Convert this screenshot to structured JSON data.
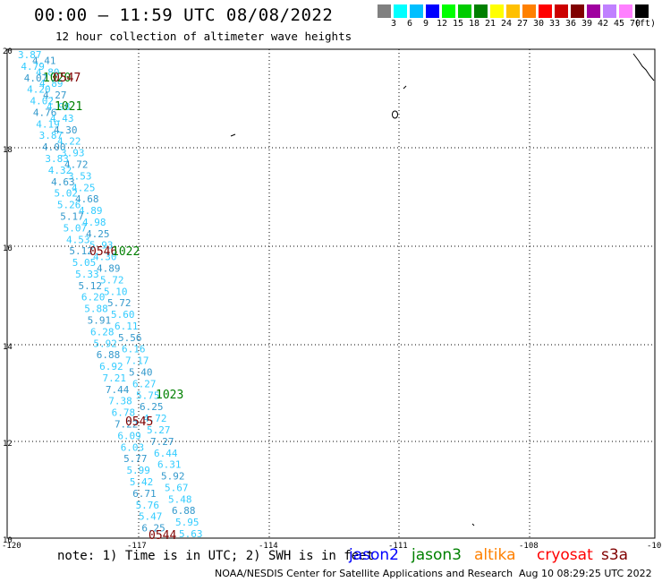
{
  "header": {
    "title": "00:00 – 11:59 UTC 08/08/2022",
    "subtitle": "12 hour collection of altimeter wave heights"
  },
  "color_scale": {
    "colors": [
      "#808080",
      "#00ffff",
      "#00bfff",
      "#0000ff",
      "#00ff00",
      "#00cc00",
      "#008000",
      "#ffff00",
      "#ffc000",
      "#ff8000",
      "#ff0000",
      "#cc0000",
      "#800000",
      "#a000a0",
      "#c080ff",
      "#ff80ff",
      "#000000"
    ],
    "labels": [
      "3",
      "6",
      "9",
      "12",
      "15",
      "18",
      "21",
      "24",
      "27",
      "30",
      "33",
      "36",
      "39",
      "42",
      "45",
      "70"
    ],
    "unit": "(ft)"
  },
  "axes": {
    "x_ticks": [
      "-120",
      "-117",
      "-114",
      "-111",
      "-108",
      "-10"
    ],
    "y_ticks": [
      "20",
      "18",
      "16",
      "14",
      "12",
      "10"
    ]
  },
  "labels_color_light": "#33ccff",
  "labels_color_dark": "#3399cc",
  "track_left": [
    "3.87",
    "4.41",
    "4.79",
    "4.80",
    "4.07",
    "4.89",
    "4.20",
    "4.27",
    "4.02",
    "4.98",
    "4.76",
    "4.43",
    "4.19",
    "4.30",
    "3.87",
    "4.22",
    "4.00",
    "3.93",
    "3.83",
    "4.72",
    "4.32",
    "3.53",
    "4.63",
    "4.25",
    "5.02",
    "4.68",
    "5.26",
    "4.89",
    "5.17",
    "4.98",
    "5.07",
    "4.25",
    "4.53",
    "5.93",
    "5.12",
    "4.30",
    "5.05",
    "4.89",
    "5.33",
    "5.72",
    "5.12",
    "5.10",
    "6.20",
    "5.72",
    "5.88",
    "5.60",
    "5.91",
    "6.11",
    "6.28",
    "5.56",
    "5.92",
    "6.16",
    "6.88",
    "7.17",
    "6.92",
    "5.40",
    "7.21",
    "6.27",
    "7.44",
    "5.75",
    "7.38",
    "6.25",
    "6.78",
    "4.72",
    "7.22",
    "5.27",
    "6.09",
    "7.27",
    "6.03",
    "6.44",
    "5.77",
    "6.31",
    "5.99",
    "5.92",
    "5.42",
    "5.67",
    "6.71",
    "5.48",
    "5.76",
    "6.88",
    "5.47",
    "5.95",
    "6.25",
    "5.63"
  ],
  "pass_labels": [
    {
      "text": "1020",
      "color": "#008000"
    },
    {
      "text": "0547",
      "color": "#800000"
    },
    {
      "text": "1021",
      "color": "#008000"
    },
    {
      "text": "0546",
      "color": "#800000"
    },
    {
      "text": "1022",
      "color": "#008000"
    },
    {
      "text": "1023",
      "color": "#008000"
    },
    {
      "text": "0545",
      "color": "#800000"
    },
    {
      "text": "0544",
      "color": "#800000"
    }
  ],
  "footer": {
    "note": "note: 1) Time is in UTC; 2) SWH is in feet",
    "legend": [
      {
        "text": "jason2",
        "color": "#0000ff"
      },
      {
        "text": "jason3",
        "color": "#008000"
      },
      {
        "text": "altika",
        "color": "#ff8000"
      },
      {
        "text": "cryosat",
        "color": "#ff0000"
      },
      {
        "text": "s3a",
        "color": "#800000"
      }
    ],
    "credit": "NOAA/NESDIS Center for Satellite Applications and Research",
    "timestamp": "Aug 10 08:29:25 UTC 2022"
  }
}
